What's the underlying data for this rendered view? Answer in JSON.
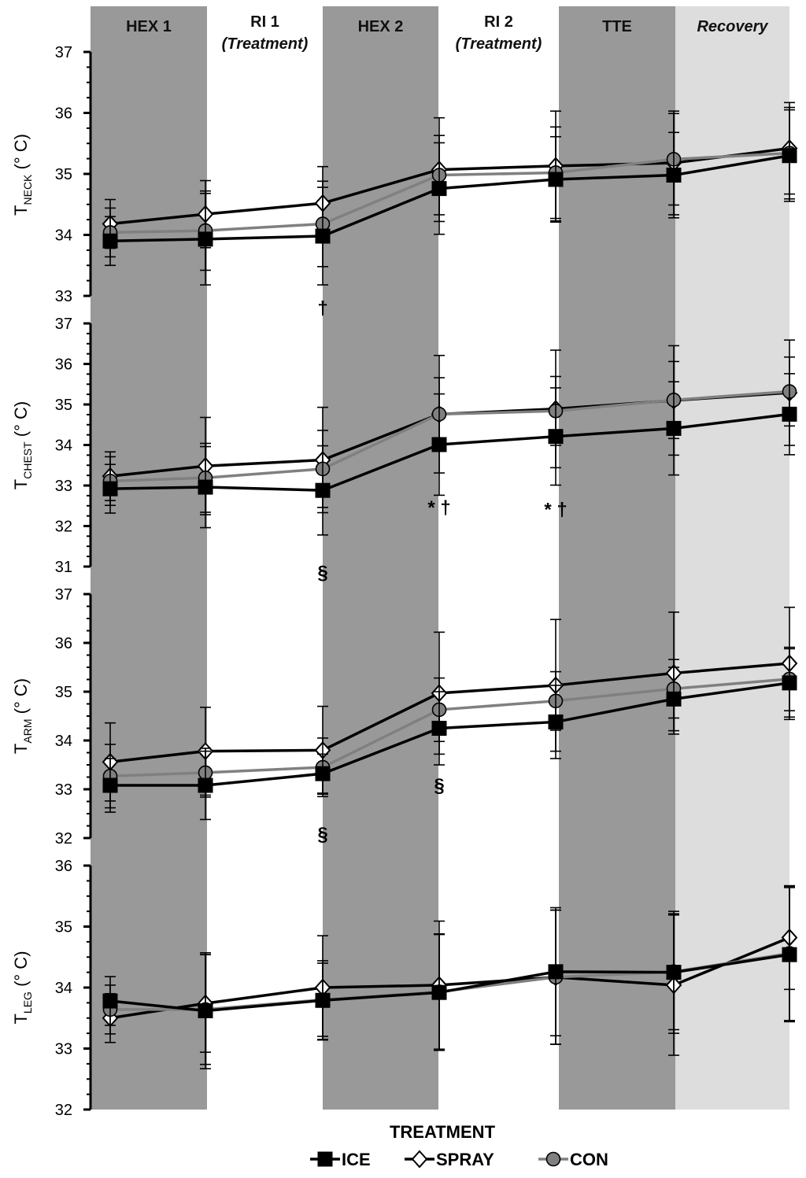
{
  "phases": [
    {
      "label": "HEX 1",
      "sub": "",
      "style": "dark"
    },
    {
      "label": "RI 1",
      "sub": "(Treatment)",
      "style": "light"
    },
    {
      "label": "HEX 2",
      "sub": "",
      "style": "dark"
    },
    {
      "label": "RI 2",
      "sub": "(Treatment)",
      "style": "light"
    },
    {
      "label": "TTE",
      "sub": "",
      "style": "dark"
    },
    {
      "label": "Recovery",
      "sub": "",
      "style": "recovery"
    }
  ],
  "xlabel": "TREATMENT",
  "legend": [
    {
      "name": "ICE",
      "marker": "square"
    },
    {
      "name": "SPRAY",
      "marker": "diamond"
    },
    {
      "name": "CON",
      "marker": "circle"
    }
  ],
  "colors": {
    "band_dark": "#999999",
    "band_recovery": "#dddddd",
    "ice": "#000000",
    "spray": "#000000",
    "con": "#808080",
    "con_marker": "#808080"
  },
  "chart_data": [
    {
      "type": "line",
      "ylabel_main": "T",
      "ylabel_sub": "NECK",
      "ylabel_unit": " (° C)",
      "ylim": [
        33,
        37
      ],
      "yticks": [
        "33",
        "34",
        "35",
        "36",
        "37"
      ],
      "x": [
        1,
        2,
        3,
        4,
        5,
        6,
        7
      ],
      "series": [
        {
          "name": "ICE",
          "values": [
            33.9,
            33.93,
            33.98,
            34.76,
            34.91,
            34.98,
            35.3
          ],
          "errors": [
            0.4,
            0.75,
            0.8,
            0.75,
            0.7,
            0.7,
            0.75
          ]
        },
        {
          "name": "SPRAY",
          "values": [
            34.18,
            34.34,
            34.52,
            35.07,
            35.13,
            35.18,
            35.42
          ],
          "errors": [
            0.4,
            0.55,
            0.6,
            0.85,
            0.9,
            0.85,
            0.75
          ]
        },
        {
          "name": "CON",
          "values": [
            34.04,
            34.07,
            34.18,
            34.98,
            35.02,
            35.24,
            35.34
          ],
          "errors": [
            0.4,
            0.65,
            0.7,
            0.65,
            0.75,
            0.75,
            0.75
          ]
        }
      ],
      "annotations": [
        {
          "text": "†",
          "x": 3,
          "y": 32.7
        }
      ]
    },
    {
      "type": "line",
      "ylabel_main": "T",
      "ylabel_sub": "CHEST",
      "ylabel_unit": " (° C)",
      "ylim": [
        31,
        37
      ],
      "yticks": [
        "31",
        "32",
        "33",
        "34",
        "35",
        "36",
        "37"
      ],
      "x": [
        1,
        2,
        3,
        4,
        5,
        6,
        7
      ],
      "series": [
        {
          "name": "ICE",
          "values": [
            32.92,
            32.96,
            32.88,
            34.01,
            34.21,
            34.41,
            34.76
          ],
          "errors": [
            0.6,
            1.0,
            1.1,
            1.25,
            1.2,
            1.15,
            1.0
          ]
        },
        {
          "name": "SPRAY",
          "values": [
            33.23,
            33.48,
            33.63,
            34.76,
            34.89,
            35.1,
            35.29
          ],
          "errors": [
            0.6,
            1.2,
            1.3,
            1.45,
            1.45,
            1.35,
            1.3
          ]
        },
        {
          "name": "CON",
          "values": [
            33.11,
            33.19,
            33.41,
            34.76,
            34.84,
            35.11,
            35.32
          ],
          "errors": [
            0.6,
            0.85,
            0.95,
            0.9,
            0.85,
            0.95,
            0.85
          ]
        }
      ],
      "annotations": [
        {
          "text": "* †",
          "x": 4,
          "y": 32.3
        },
        {
          "text": "* †",
          "x": 5,
          "y": 32.25
        },
        {
          "text": "§",
          "x": 3,
          "y": 30.7
        }
      ]
    },
    {
      "type": "line",
      "ylabel_main": "T",
      "ylabel_sub": "ARM",
      "ylabel_unit": " (° C)",
      "ylim": [
        32,
        37
      ],
      "yticks": [
        "32",
        "33",
        "34",
        "35",
        "36",
        "37"
      ],
      "x": [
        1,
        2,
        3,
        4,
        5,
        6,
        7
      ],
      "series": [
        {
          "name": "ICE",
          "values": [
            33.08,
            33.08,
            33.32,
            34.25,
            34.38,
            34.85,
            35.18
          ],
          "errors": [
            0.55,
            0.7,
            0.4,
            0.75,
            0.75,
            0.65,
            0.7
          ]
        },
        {
          "name": "SPRAY",
          "values": [
            33.56,
            33.78,
            33.8,
            34.97,
            35.13,
            35.38,
            35.58
          ],
          "errors": [
            0.8,
            0.9,
            0.9,
            1.25,
            1.35,
            1.25,
            1.15
          ]
        },
        {
          "name": "CON",
          "values": [
            33.27,
            33.34,
            33.45,
            34.63,
            34.81,
            35.06,
            35.26
          ],
          "errors": [
            0.65,
            0.5,
            0.6,
            0.65,
            0.6,
            0.6,
            0.65
          ]
        }
      ],
      "annotations": [
        {
          "text": "§",
          "x": 4,
          "y": 32.95
        },
        {
          "text": "§",
          "x": 3,
          "y": 31.95
        }
      ]
    },
    {
      "type": "line",
      "ylabel_main": "T",
      "ylabel_sub": "LEG",
      "ylabel_unit": " (° C)",
      "ylim": [
        32,
        36
      ],
      "yticks": [
        "32",
        "33",
        "34",
        "35",
        "36"
      ],
      "x": [
        1,
        2,
        3,
        4,
        5,
        6,
        7
      ],
      "series": [
        {
          "name": "ICE",
          "values": [
            33.78,
            33.62,
            33.79,
            33.92,
            34.26,
            34.25,
            34.54
          ],
          "errors": [
            0.4,
            0.95,
            0.65,
            0.95,
            1.05,
            1.0,
            1.1
          ]
        },
        {
          "name": "SPRAY",
          "values": [
            33.5,
            33.74,
            34.0,
            34.04,
            34.17,
            34.04,
            34.82
          ],
          "errors": [
            0.4,
            0.8,
            0.85,
            1.05,
            1.1,
            1.15,
            0.85
          ]
        },
        {
          "name": "CON",
          "values": [
            33.64,
            33.64,
            33.8,
            33.93,
            34.17,
            34.26,
            34.56
          ],
          "errors": [
            0.4,
            0.9,
            0.6,
            0.95,
            1.1,
            0.95,
            1.1
          ]
        }
      ],
      "annotations": []
    }
  ]
}
